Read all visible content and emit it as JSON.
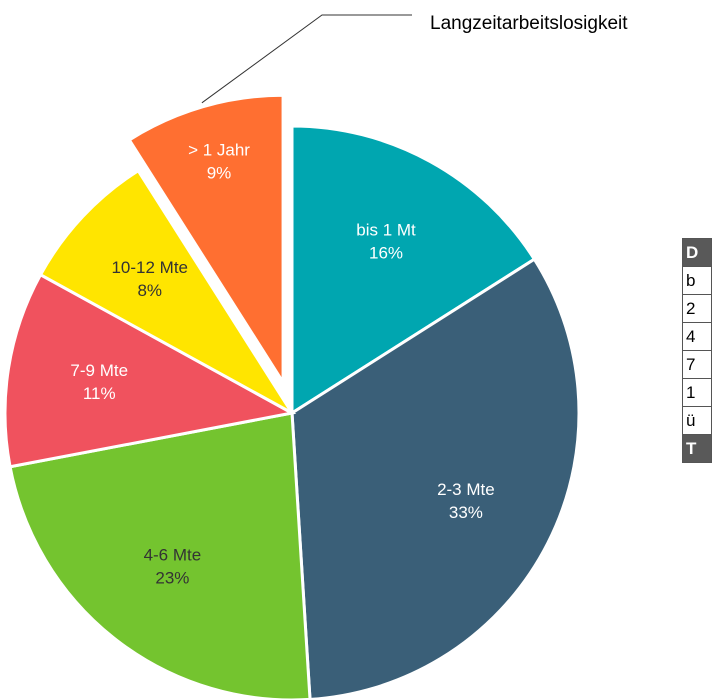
{
  "chart_data": {
    "type": "pie",
    "annotation": "Langzeitarbeitslosigkeit",
    "categories": [
      "bis 1 Mt",
      "2-3 Mte",
      "4-6 Mte",
      "7-9 Mte",
      "10-12 Mte",
      "> 1 Jahr"
    ],
    "values": [
      16,
      33,
      23,
      11,
      8,
      9
    ],
    "value_labels": [
      "16%",
      "33%",
      "23%",
      "11%",
      "8%",
      "9%"
    ],
    "colors": [
      "#00a6b0",
      "#3a5f78",
      "#74c42f",
      "#f0525e",
      "#ffe500",
      "#ff6f31"
    ],
    "explode": [
      false,
      false,
      false,
      false,
      false,
      true
    ]
  },
  "table": {
    "header": "D",
    "rows": [
      "b",
      "2",
      "4",
      "7",
      "1",
      "ü"
    ],
    "footer": "T"
  }
}
